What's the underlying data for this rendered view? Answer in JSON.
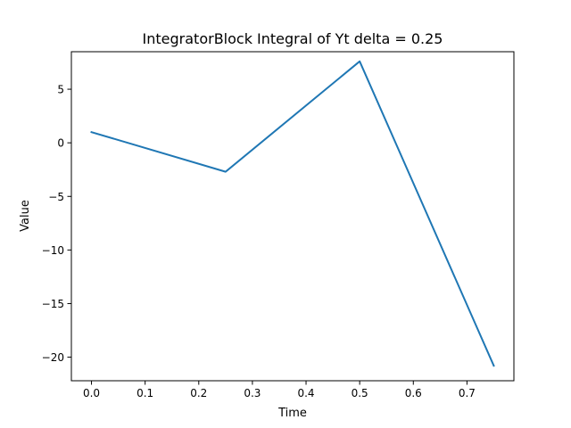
{
  "chart_data": {
    "type": "line",
    "title": "IntegratorBlock Integral of Yt delta = 0.25",
    "xlabel": "Time",
    "ylabel": "Value",
    "xlim": [
      -0.0375,
      0.7875
    ],
    "ylim": [
      -22.2,
      8.5
    ],
    "xticks": [
      0.0,
      0.1,
      0.2,
      0.3,
      0.4,
      0.5,
      0.6,
      0.7
    ],
    "xtick_labels": [
      "0.0",
      "0.1",
      "0.2",
      "0.3",
      "0.4",
      "0.5",
      "0.6",
      "0.7"
    ],
    "yticks": [
      5,
      0,
      -5,
      -10,
      -15,
      -20
    ],
    "ytick_labels": [
      "5",
      "0",
      "−5",
      "−10",
      "−15",
      "−20"
    ],
    "grid": false,
    "series": [
      {
        "color": "#1f77b4",
        "x": [
          0.0,
          0.25,
          0.5,
          0.75
        ],
        "y": [
          1.0,
          -2.7,
          7.6,
          -20.8
        ]
      }
    ]
  }
}
